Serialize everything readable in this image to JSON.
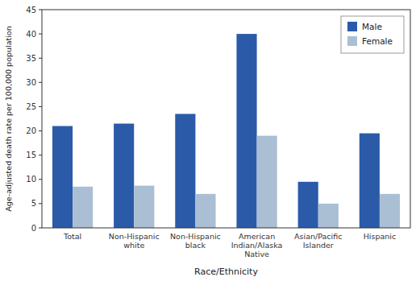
{
  "chart_data": {
    "type": "bar",
    "xlabel": "Race/Ethnicity",
    "ylabel": "Age-adjusted death rate per 100,000 population",
    "categories": [
      "Total",
      "Non-Hispanic\nwhite",
      "Non-Hispanic\nblack",
      "American\nIndian/Alaska\nNative",
      "Asian/Pacific\nIslander",
      "Hispanic"
    ],
    "series": [
      {
        "name": "Male",
        "color": "#2B5BA8",
        "values": [
          21.0,
          21.5,
          23.5,
          40.0,
          9.5,
          19.5
        ]
      },
      {
        "name": "Female",
        "color": "#AABFD4",
        "values": [
          8.5,
          8.7,
          7.0,
          19.0,
          5.0,
          7.0
        ]
      }
    ],
    "ylim": [
      0,
      45
    ],
    "yticks": [
      0,
      5,
      10,
      15,
      20,
      25,
      30,
      35,
      40,
      45
    ],
    "grid": false,
    "legend": "upper right"
  }
}
